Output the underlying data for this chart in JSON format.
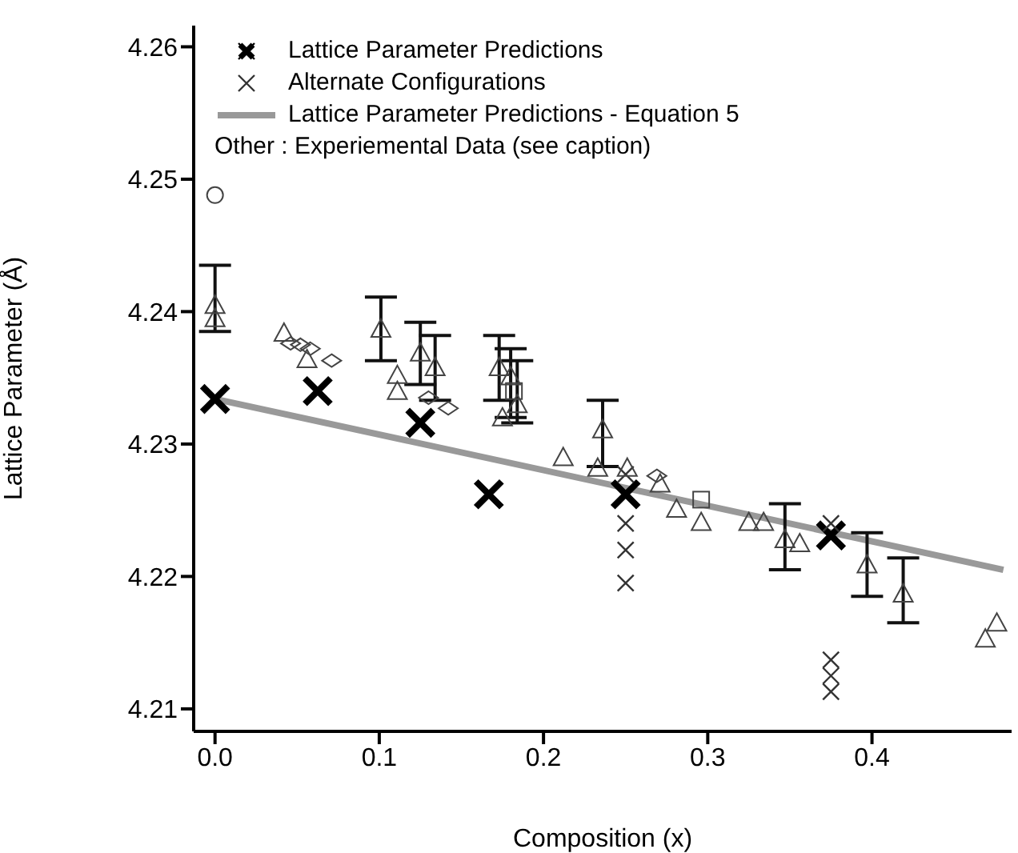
{
  "chart_data": {
    "type": "scatter",
    "xlabel": "Composition (x)",
    "ylabel": "Lattice Parameter (Å)",
    "xlim": [
      -0.013,
      0.485
    ],
    "ylim": [
      4.2083,
      4.2616
    ],
    "xticks": [
      {
        "value": 0,
        "label": "0.0"
      },
      0.1,
      0.2,
      0.3,
      0.4
    ],
    "yticks": [
      4.21,
      4.22,
      4.23,
      4.24,
      4.25,
      4.26
    ],
    "legend": "top left",
    "annotations": [
      "Other : Experiemental Data (see caption)"
    ],
    "series": [
      {
        "name": "Lattice Parameter Predictions",
        "marker": "cross",
        "color": "#000000",
        "x": [
          0,
          0.0625,
          0.125,
          0.1667,
          0.25,
          0.375
        ],
        "values": [
          4.2334,
          4.234,
          4.2316,
          4.2262,
          4.2262,
          4.2231
        ]
      },
      {
        "name": "Alternate Configurations",
        "marker": "cross",
        "color": "#333333",
        "x": [
          0.25,
          0.25,
          0.25,
          0.25,
          0.375,
          0.375,
          0.375,
          0.375
        ],
        "values": [
          4.2277,
          4.224,
          4.222,
          4.2195,
          4.224,
          4.2137,
          4.2125,
          4.2113
        ]
      },
      {
        "name": "Lattice Parameter Predictions - Equation 5",
        "type": "line",
        "color": "#999999",
        "x": [
          0,
          0.48
        ],
        "values": [
          4.2334,
          4.2205
        ]
      },
      {
        "marker": "triangle",
        "color": "#444444",
        "x": [
          0,
          0,
          0.042,
          0.056,
          0.111,
          0.101,
          0.125,
          0.111,
          0.134,
          0.173,
          0.18,
          0.184,
          0.175,
          0.212,
          0.236,
          0.233,
          0.251,
          0.271,
          0.281,
          0.296,
          0.325,
          0.334,
          0.347,
          0.356,
          0.397,
          0.419,
          0.476,
          0.469
        ],
        "values": [
          4.2405,
          4.2395,
          4.2384,
          4.2364,
          4.234,
          4.2387,
          4.2369,
          4.2352,
          4.2358,
          4.2358,
          4.2351,
          4.233,
          4.232,
          4.229,
          4.2311,
          4.2282,
          4.2282,
          4.227,
          4.2251,
          4.2241,
          4.2241,
          4.2241,
          4.2228,
          4.2225,
          4.2209,
          4.2187,
          4.2165,
          4.2153
        ],
        "errors": [
          [
            4.2385,
            4.2435
          ],
          null,
          null,
          null,
          null,
          [
            4.2363,
            4.2411
          ],
          [
            4.2345,
            4.2392
          ],
          null,
          [
            4.2333,
            4.2382
          ],
          [
            4.2333,
            4.2382
          ],
          [
            4.232,
            4.2372
          ],
          [
            4.2316,
            4.2363
          ],
          null,
          null,
          [
            4.2283,
            4.2333
          ],
          null,
          null,
          null,
          null,
          null,
          null,
          null,
          [
            4.2205,
            4.2255
          ],
          null,
          [
            4.2185,
            4.2233
          ],
          [
            4.2165,
            4.2214
          ],
          null,
          null
        ]
      },
      {
        "marker": "diamond",
        "color": "#444444",
        "x": [
          0.046,
          0.052,
          0.058,
          0.071,
          0.13,
          0.142,
          0.269
        ],
        "values": [
          4.2376,
          4.2375,
          4.2372,
          4.2363,
          4.2335,
          4.2327,
          4.2276
        ]
      },
      {
        "marker": "circle",
        "color": "#444444",
        "x": [
          0
        ],
        "values": [
          4.2488
        ]
      },
      {
        "marker": "square",
        "color": "#444444",
        "x": [
          0.182,
          0.296
        ],
        "values": [
          4.234,
          4.2258
        ]
      }
    ]
  }
}
